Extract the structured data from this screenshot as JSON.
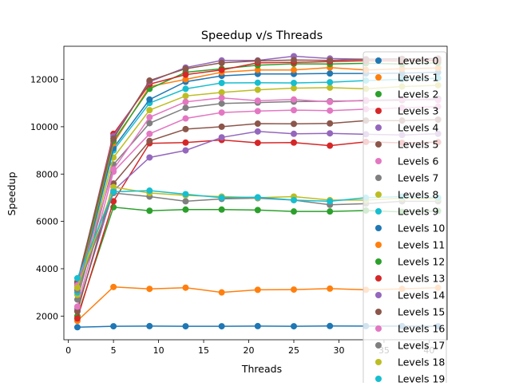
{
  "chart_data": {
    "type": "line",
    "title": "Speedup v/s Threads",
    "xlabel": "Threads",
    "ylabel": "Speedup",
    "xlim": [
      -0.5,
      42
    ],
    "ylim": [
      1000,
      13400
    ],
    "xticks": [
      0,
      5,
      10,
      15,
      20,
      25,
      30,
      35,
      40
    ],
    "yticks": [
      2000,
      4000,
      6000,
      8000,
      10000,
      12000
    ],
    "grid": false,
    "legend_position": "top-right",
    "x": [
      1,
      5,
      9,
      13,
      17,
      21,
      25,
      29,
      33,
      37,
      41
    ],
    "series": [
      {
        "name": "Levels 0",
        "color": "#1f77b4",
        "values": [
          1530,
          1570,
          1575,
          1570,
          1570,
          1575,
          1570,
          1580,
          1575,
          1575,
          1570
        ]
      },
      {
        "name": "Levels 1",
        "color": "#ff7f0e",
        "values": [
          1800,
          3230,
          3150,
          3200,
          3000,
          3110,
          3120,
          3160,
          3110,
          3150,
          3200
        ]
      },
      {
        "name": "Levels 2",
        "color": "#2ca02c",
        "values": [
          2000,
          6600,
          6450,
          6500,
          6500,
          6480,
          6420,
          6420,
          6460,
          6400,
          6440
        ]
      },
      {
        "name": "Levels 3",
        "color": "#d62728",
        "values": [
          1900,
          6850,
          9300,
          9330,
          9440,
          9320,
          9330,
          9200,
          9360,
          9320,
          9350
        ]
      },
      {
        "name": "Levels 4",
        "color": "#9467bd",
        "values": [
          2300,
          7300,
          8700,
          9000,
          9550,
          9800,
          9700,
          9720,
          9680,
          9650,
          9700
        ]
      },
      {
        "name": "Levels 5",
        "color": "#8c564b",
        "values": [
          2200,
          7600,
          9400,
          9900,
          10000,
          10130,
          10120,
          10140,
          10260,
          10260,
          10300
        ]
      },
      {
        "name": "Levels 6",
        "color": "#e377c2",
        "values": [
          2400,
          8100,
          9700,
          10350,
          10600,
          10660,
          10700,
          10680,
          10740,
          10800,
          10850
        ]
      },
      {
        "name": "Levels 7",
        "color": "#7f7f7f",
        "values": [
          2700,
          8400,
          10150,
          10800,
          10980,
          11020,
          11060,
          11080,
          11100,
          11120,
          11180
        ]
      },
      {
        "name": "Levels 8",
        "color": "#bcbd22",
        "values": [
          2900,
          8700,
          10700,
          11300,
          11450,
          11560,
          11630,
          11650,
          11600,
          11700,
          11750
        ]
      },
      {
        "name": "Levels 9",
        "color": "#17becf",
        "values": [
          3000,
          9000,
          11000,
          11600,
          11850,
          11860,
          11850,
          11880,
          11950,
          12000,
          12050
        ]
      },
      {
        "name": "Levels 10",
        "color": "#1f77b4",
        "values": [
          3100,
          9100,
          11150,
          11900,
          12150,
          12230,
          12230,
          12250,
          12250,
          12260,
          12300
        ]
      },
      {
        "name": "Levels 11",
        "color": "#ff7f0e",
        "values": [
          3200,
          9300,
          11700,
          12000,
          12300,
          12400,
          12400,
          12500,
          12400,
          12450,
          12480
        ]
      },
      {
        "name": "Levels 12",
        "color": "#2ca02c",
        "values": [
          3300,
          9400,
          11600,
          12300,
          12450,
          12600,
          12660,
          12650,
          12680,
          12650,
          12700
        ]
      },
      {
        "name": "Levels 13",
        "color": "#d62728",
        "values": [
          3350,
          9700,
          11800,
          12200,
          12400,
          12700,
          12720,
          12750,
          12790,
          12780,
          12800
        ]
      },
      {
        "name": "Levels 14",
        "color": "#9467bd",
        "values": [
          3400,
          9600,
          11900,
          12500,
          12800,
          12800,
          12980,
          12880,
          12850,
          12870,
          12880
        ]
      },
      {
        "name": "Levels 15",
        "color": "#8c564b",
        "values": [
          3450,
          9500,
          11950,
          12450,
          12700,
          12780,
          12820,
          12800,
          12850,
          12860,
          12870
        ]
      },
      {
        "name": "Levels 16",
        "color": "#e377c2",
        "values": [
          3300,
          8200,
          10400,
          11050,
          11220,
          11100,
          11150,
          11050,
          11120,
          11150,
          11130
        ]
      },
      {
        "name": "Levels 17",
        "color": "#7f7f7f",
        "values": [
          3100,
          7200,
          7050,
          6850,
          6950,
          6980,
          6900,
          6700,
          6750,
          6850,
          6850
        ]
      },
      {
        "name": "Levels 18",
        "color": "#bcbd22",
        "values": [
          3200,
          7450,
          7200,
          7100,
          7050,
          7000,
          7050,
          6900,
          6900,
          6980,
          6950
        ]
      },
      {
        "name": "Levels 19",
        "color": "#17becf",
        "values": [
          3600,
          7250,
          7300,
          7150,
          7000,
          7020,
          6900,
          6850,
          7000,
          7050,
          7000
        ]
      }
    ]
  }
}
